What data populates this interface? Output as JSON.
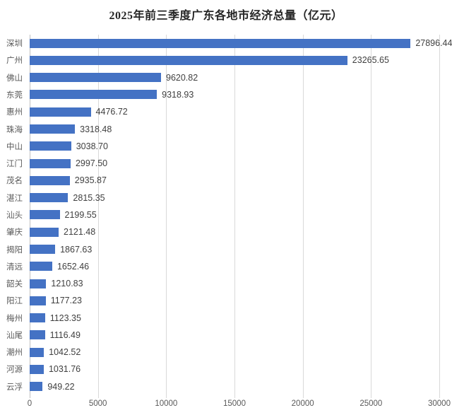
{
  "title": "2025年前三季度广东各地市经济总量（亿元）",
  "colors": {
    "bar": "#4472C4",
    "gridline": "#D9D9D9",
    "axis_line": "#BFBFBF",
    "title_text": "#262626",
    "category_text": "#595959",
    "value_text": "#404040",
    "tick_text": "#595959",
    "background": "#FFFFFF"
  },
  "chart_data": {
    "type": "bar",
    "orientation": "horizontal",
    "title": "2025年前三季度广东各地市经济总量（亿元）",
    "categories": [
      "深圳",
      "广州",
      "佛山",
      "东莞",
      "惠州",
      "珠海",
      "中山",
      "江门",
      "茂名",
      "湛江",
      "汕头",
      "肇庆",
      "揭阳",
      "清远",
      "韶关",
      "阳江",
      "梅州",
      "汕尾",
      "潮州",
      "河源",
      "云浮"
    ],
    "values": [
      27896.44,
      23265.65,
      9620.82,
      9318.93,
      4476.72,
      3318.48,
      3038.7,
      2997.5,
      2935.87,
      2815.35,
      2199.55,
      2121.48,
      1867.63,
      1652.46,
      1210.83,
      1177.23,
      1123.35,
      1116.49,
      1042.52,
      1031.76,
      949.22
    ],
    "value_labels": [
      "27896.44",
      "23265.65",
      "9620.82",
      "9318.93",
      "4476.72",
      "3318.48",
      "3038.70",
      "2997.50",
      "2935.87",
      "2815.35",
      "2199.55",
      "2121.48",
      "1867.63",
      "1652.46",
      "1210.83",
      "1177.23",
      "1123.35",
      "1116.49",
      "1042.52",
      "1031.76",
      "949.22"
    ],
    "xlabel": "",
    "ylabel": "",
    "xlim": [
      0,
      30000
    ],
    "x_ticks": [
      0,
      5000,
      10000,
      15000,
      20000,
      25000,
      30000
    ],
    "x_tick_labels": [
      "0",
      "5000",
      "10000",
      "15000",
      "20000",
      "25000",
      "30000"
    ],
    "grid": true,
    "legend": false,
    "data_labels": true
  }
}
